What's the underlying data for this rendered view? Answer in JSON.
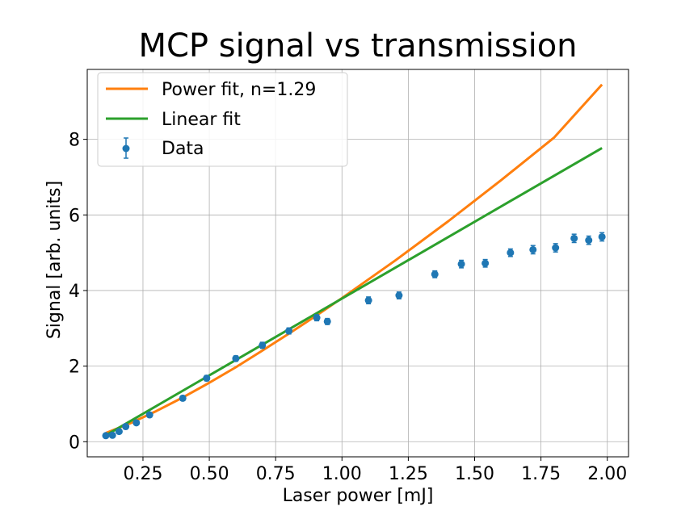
{
  "chart_data": {
    "type": "scatter",
    "title": "MCP signal vs transmission",
    "xlabel": "Laser power [mJ]",
    "ylabel": "Signal [arb. units]",
    "xlim": [
      0.04,
      2.08
    ],
    "ylim": [
      -0.4,
      9.85
    ],
    "xticks": [
      0.25,
      0.5,
      0.75,
      1.0,
      1.25,
      1.5,
      1.75,
      2.0
    ],
    "xtick_labels": [
      "0.25",
      "0.50",
      "0.75",
      "1.00",
      "1.25",
      "1.50",
      "1.75",
      "2.00"
    ],
    "yticks": [
      0,
      2,
      4,
      6,
      8
    ],
    "ytick_labels": [
      "0",
      "2",
      "4",
      "6",
      "8"
    ],
    "grid": true,
    "legend_position": "top-left",
    "series": [
      {
        "name": "Power fit, n=1.29",
        "kind": "line",
        "color": "#ff7f0e",
        "x": [
          0.11,
          0.2,
          0.3,
          0.4,
          0.5,
          0.6,
          0.7,
          0.8,
          0.9,
          1.0,
          1.2,
          1.4,
          1.6,
          1.8,
          1.98
        ],
        "y": [
          0.23,
          0.48,
          0.81,
          1.17,
          1.56,
          1.97,
          2.41,
          2.86,
          3.32,
          3.8,
          4.79,
          5.83,
          6.92,
          8.05,
          9.45
        ]
      },
      {
        "name": "Linear fit",
        "kind": "line",
        "color": "#2ca02c",
        "x": [
          0.11,
          1.98
        ],
        "y": [
          0.17,
          7.77
        ]
      },
      {
        "name": "Data",
        "kind": "errorbar",
        "color": "#1f77b4",
        "x": [
          0.11,
          0.135,
          0.16,
          0.185,
          0.225,
          0.275,
          0.4,
          0.49,
          0.6,
          0.7,
          0.8,
          0.905,
          0.945,
          1.1,
          1.215,
          1.35,
          1.45,
          1.54,
          1.635,
          1.72,
          1.805,
          1.875,
          1.93,
          1.98
        ],
        "y": [
          0.16,
          0.17,
          0.27,
          0.4,
          0.5,
          0.71,
          1.15,
          1.68,
          2.2,
          2.55,
          2.93,
          3.28,
          3.18,
          3.74,
          3.87,
          4.43,
          4.7,
          4.72,
          5.0,
          5.08,
          5.13,
          5.38,
          5.33,
          5.42
        ],
        "yerr": [
          0.05,
          0.05,
          0.05,
          0.05,
          0.05,
          0.06,
          0.06,
          0.07,
          0.07,
          0.08,
          0.08,
          0.08,
          0.08,
          0.09,
          0.09,
          0.09,
          0.1,
          0.1,
          0.1,
          0.11,
          0.11,
          0.11,
          0.11,
          0.11
        ]
      }
    ]
  }
}
